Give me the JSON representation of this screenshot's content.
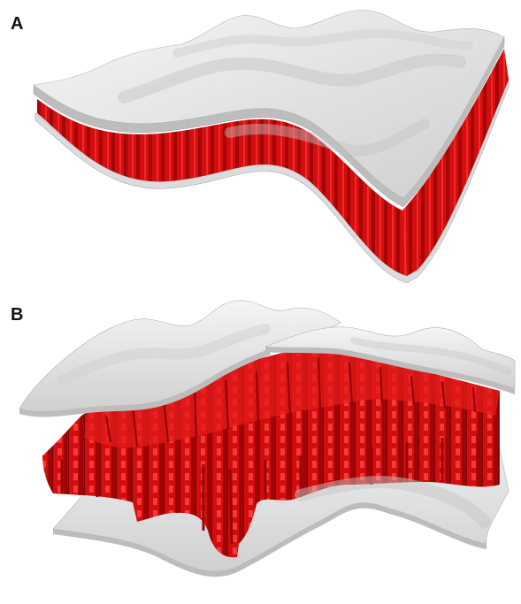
{
  "panels": [
    {
      "label": "A"
    },
    {
      "label": "B"
    }
  ],
  "colors": {
    "core": "#d40e0e",
    "core_dark": "#a60606",
    "core_light": "#f03030",
    "sheet": "#efefef",
    "sheet_shade": "#c8c8c8",
    "sheet_edge": "#9a9a9a"
  }
}
